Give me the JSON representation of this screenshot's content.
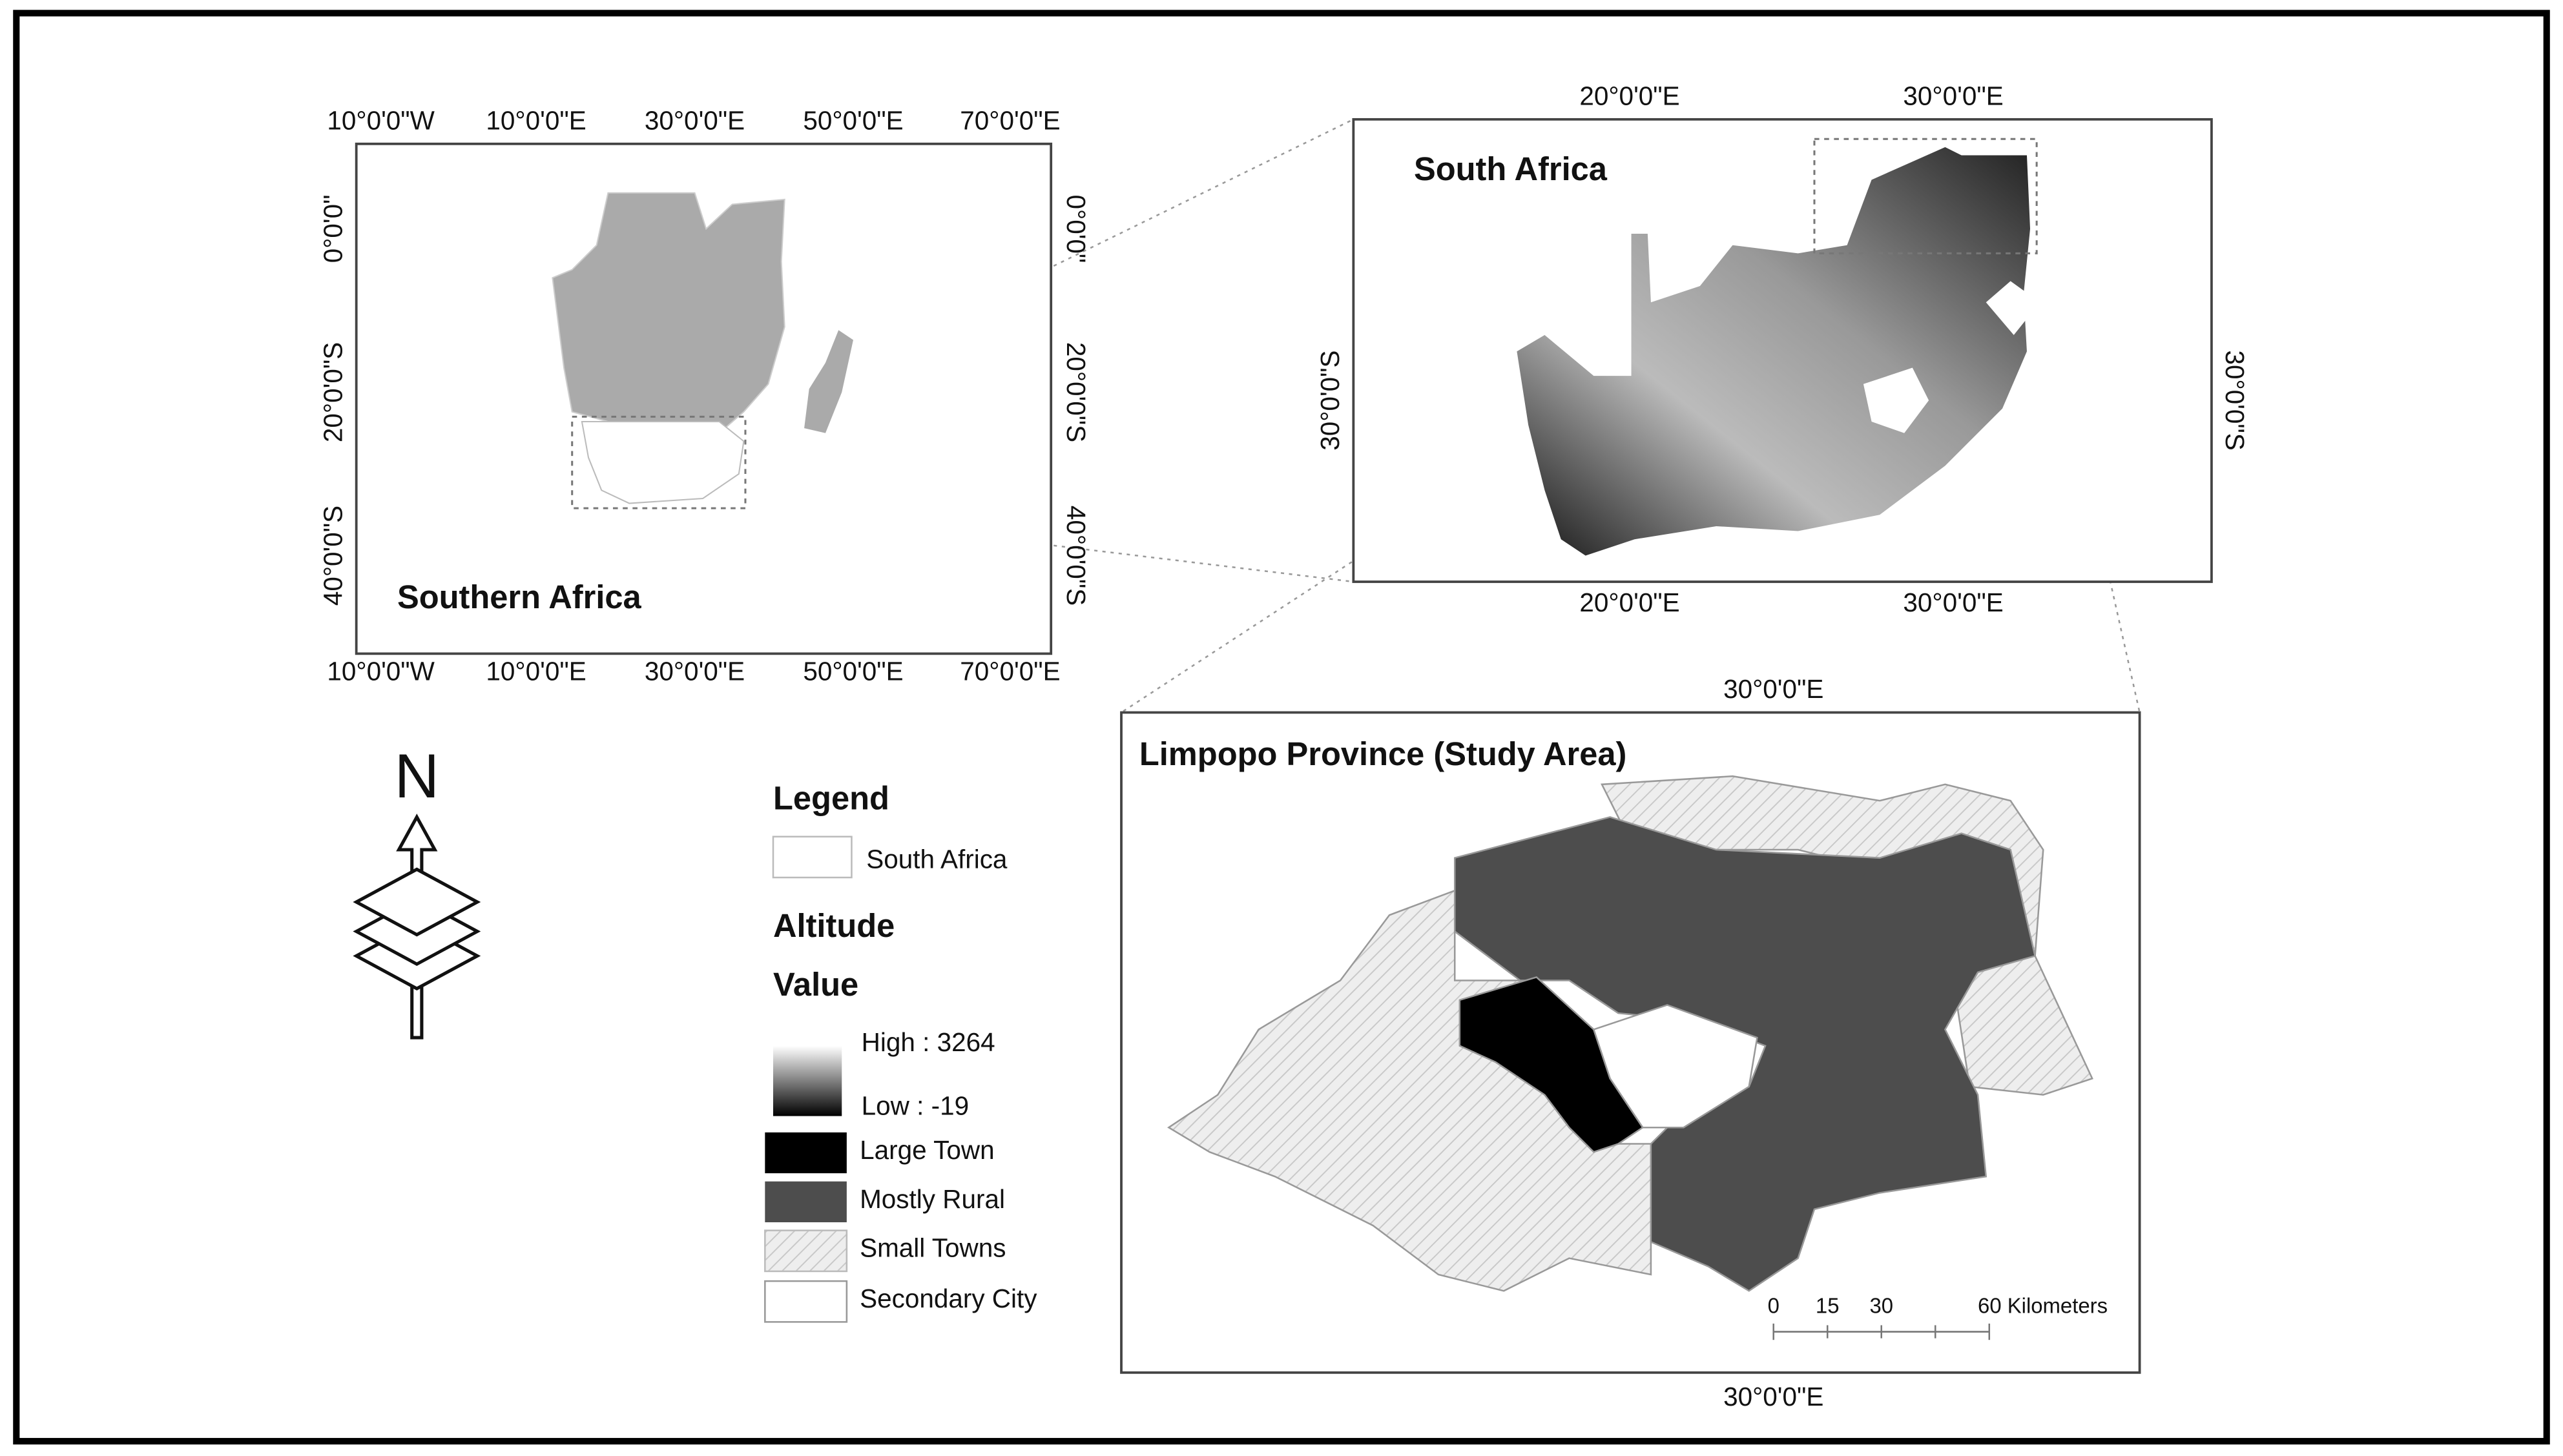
{
  "southern_africa": {
    "title": "Southern Africa",
    "top_labels": [
      "10°0'0\"W",
      "10°0'0\"E",
      "30°0'0\"E",
      "50°0'0\"E",
      "70°0'0\"E"
    ],
    "bottom_labels": [
      "10°0'0\"W",
      "10°0'0\"E",
      "30°0'0\"E",
      "50°0'0\"E",
      "70°0'0\"E"
    ],
    "left_labels": [
      "0°0'0\"",
      "20°0'0\"S",
      "40°0'0\"S"
    ],
    "right_labels": [
      "0°0'0\"",
      "20°0'0\"S",
      "40°0'0\"S"
    ]
  },
  "south_africa": {
    "title": "South Africa",
    "top_labels": [
      "20°0'0\"E",
      "30°0'0\"E"
    ],
    "bottom_labels": [
      "20°0'0\"E",
      "30°0'0\"E"
    ],
    "left_labels": [
      "30°0'0\"S"
    ],
    "right_labels": [
      "30°0'0\"S"
    ]
  },
  "limpopo": {
    "title": "Limpopo Province (Study Area)",
    "top_label": "30°0'0\"E",
    "bottom_label": "30°0'0\"E",
    "scale_bar": [
      "0",
      "15",
      "30",
      "60 Kilometers"
    ]
  },
  "north_arrow": "N",
  "legend": {
    "title": "Legend",
    "boundary": "South Africa",
    "altitude_title": "Altitude",
    "value_title": "Value",
    "high": "High : 3264",
    "low": "Low : -19",
    "classes": [
      "Large Town",
      "Mostly Rural",
      "Small Towns",
      "Secondary City"
    ]
  }
}
